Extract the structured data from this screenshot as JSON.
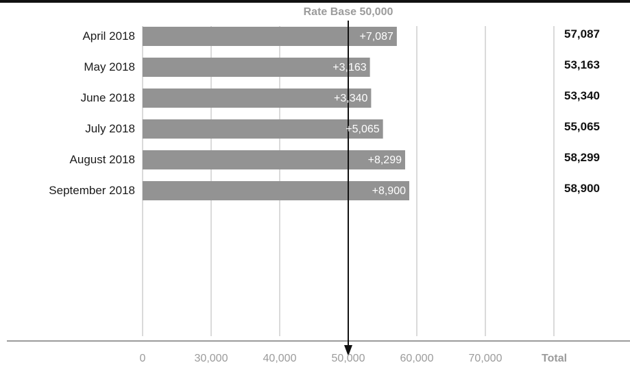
{
  "chart_data": {
    "type": "bar",
    "orientation": "horizontal",
    "reference_label": "Rate Base 50,000",
    "reference_value": 50000,
    "categories": [
      "April 2018",
      "May 2018",
      "June 2018",
      "July 2018",
      "August 2018",
      "September 2018"
    ],
    "values": [
      57087,
      53163,
      53340,
      55065,
      58299,
      58900
    ],
    "change_labels": [
      "+7,087",
      "+3,163",
      "+3,340",
      "+5,065",
      "+8,299",
      "+8,900"
    ],
    "total_labels": [
      "57,087",
      "53,163",
      "53,340",
      "55,065",
      "58,299",
      "58,900"
    ],
    "x_ticks": [
      0,
      30000,
      40000,
      50000,
      60000,
      70000
    ],
    "x_tick_labels": [
      "0",
      "30,000",
      "40,000",
      "50,000",
      "60,000",
      "70,000"
    ],
    "total_header": "Total",
    "colors": {
      "bar": "#939393",
      "grid": "#b5b5b5",
      "axis": "#9b9b9b",
      "reference": "#111111",
      "muted_text": "#9b9b9b"
    }
  }
}
